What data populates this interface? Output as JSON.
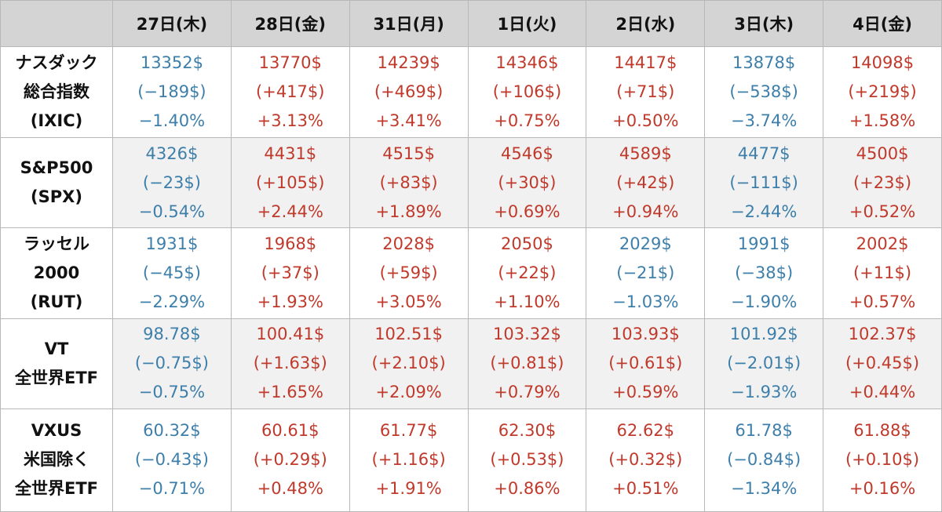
{
  "days": [
    "27日(木)",
    "28日(金)",
    "31日(月)",
    "1日(火)",
    "2日(水)",
    "3日(木)",
    "4日(金)"
  ],
  "rows": [
    {
      "name": [
        "ナスダック",
        "総合指数",
        "(IXIC)"
      ],
      "cells": [
        {
          "dir": "down",
          "price": "13352$",
          "change": "(−189$)",
          "pct": "−1.40%"
        },
        {
          "dir": "up",
          "price": "13770$",
          "change": "(+417$)",
          "pct": "+3.13%"
        },
        {
          "dir": "up",
          "price": "14239$",
          "change": "(+469$)",
          "pct": "+3.41%"
        },
        {
          "dir": "up",
          "price": "14346$",
          "change": "(+106$)",
          "pct": "+0.75%"
        },
        {
          "dir": "up",
          "price": "14417$",
          "change": "(+71$)",
          "pct": "+0.50%"
        },
        {
          "dir": "down",
          "price": "13878$",
          "change": "(−538$)",
          "pct": "−3.74%"
        },
        {
          "dir": "up",
          "price": "14098$",
          "change": "(+219$)",
          "pct": "+1.58%"
        }
      ]
    },
    {
      "name": [
        "S&P500",
        "(SPX)"
      ],
      "cells": [
        {
          "dir": "down",
          "price": "4326$",
          "change": "(−23$)",
          "pct": "−0.54%"
        },
        {
          "dir": "up",
          "price": "4431$",
          "change": "(+105$)",
          "pct": "+2.44%"
        },
        {
          "dir": "up",
          "price": "4515$",
          "change": "(+83$)",
          "pct": "+1.89%"
        },
        {
          "dir": "up",
          "price": "4546$",
          "change": "(+30$)",
          "pct": "+0.69%"
        },
        {
          "dir": "up",
          "price": "4589$",
          "change": "(+42$)",
          "pct": "+0.94%"
        },
        {
          "dir": "down",
          "price": "4477$",
          "change": "(−111$)",
          "pct": "−2.44%"
        },
        {
          "dir": "up",
          "price": "4500$",
          "change": "(+23$)",
          "pct": "+0.52%"
        }
      ]
    },
    {
      "name": [
        "ラッセル",
        "2000",
        "(RUT)"
      ],
      "cells": [
        {
          "dir": "down",
          "price": "1931$",
          "change": "(−45$)",
          "pct": "−2.29%"
        },
        {
          "dir": "up",
          "price": "1968$",
          "change": "(+37$)",
          "pct": "+1.93%"
        },
        {
          "dir": "up",
          "price": "2028$",
          "change": "(+59$)",
          "pct": "+3.05%"
        },
        {
          "dir": "up",
          "price": "2050$",
          "change": "(+22$)",
          "pct": "+1.10%"
        },
        {
          "dir": "down",
          "price": "2029$",
          "change": "(−21$)",
          "pct": "−1.03%"
        },
        {
          "dir": "down",
          "price": "1991$",
          "change": "(−38$)",
          "pct": "−1.90%"
        },
        {
          "dir": "up",
          "price": "2002$",
          "change": "(+11$)",
          "pct": "+0.57%"
        }
      ]
    },
    {
      "name": [
        "VT",
        "全世界ETF"
      ],
      "cells": [
        {
          "dir": "down",
          "price": "98.78$",
          "change": "(−0.75$)",
          "pct": "−0.75%"
        },
        {
          "dir": "up",
          "price": "100.41$",
          "change": "(+1.63$)",
          "pct": "+1.65%"
        },
        {
          "dir": "up",
          "price": "102.51$",
          "change": "(+2.10$)",
          "pct": "+2.09%"
        },
        {
          "dir": "up",
          "price": "103.32$",
          "change": "(+0.81$)",
          "pct": "+0.79%"
        },
        {
          "dir": "up",
          "price": "103.93$",
          "change": "(+0.61$)",
          "pct": "+0.59%"
        },
        {
          "dir": "down",
          "price": "101.92$",
          "change": "(−2.01$)",
          "pct": "−1.93%"
        },
        {
          "dir": "up",
          "price": "102.37$",
          "change": "(+0.45$)",
          "pct": "+0.44%"
        }
      ]
    },
    {
      "name": [
        "VXUS",
        "米国除く",
        "全世界ETF"
      ],
      "cells": [
        {
          "dir": "down",
          "price": "60.32$",
          "change": "(−0.43$)",
          "pct": "−0.71%"
        },
        {
          "dir": "up",
          "price": "60.61$",
          "change": "(+0.29$)",
          "pct": "+0.48%"
        },
        {
          "dir": "up",
          "price": "61.77$",
          "change": "(+1.16$)",
          "pct": "+1.91%"
        },
        {
          "dir": "up",
          "price": "62.30$",
          "change": "(+0.53$)",
          "pct": "+0.86%"
        },
        {
          "dir": "up",
          "price": "62.62$",
          "change": "(+0.32$)",
          "pct": "+0.51%"
        },
        {
          "dir": "down",
          "price": "61.78$",
          "change": "(−0.84$)",
          "pct": "−1.34%"
        },
        {
          "dir": "up",
          "price": "61.88$",
          "change": "(+0.10$)",
          "pct": "+0.16%"
        }
      ]
    }
  ],
  "colors": {
    "up": "#c0392b",
    "down": "#3d7faa",
    "header_bg": "#d4d4d4"
  }
}
